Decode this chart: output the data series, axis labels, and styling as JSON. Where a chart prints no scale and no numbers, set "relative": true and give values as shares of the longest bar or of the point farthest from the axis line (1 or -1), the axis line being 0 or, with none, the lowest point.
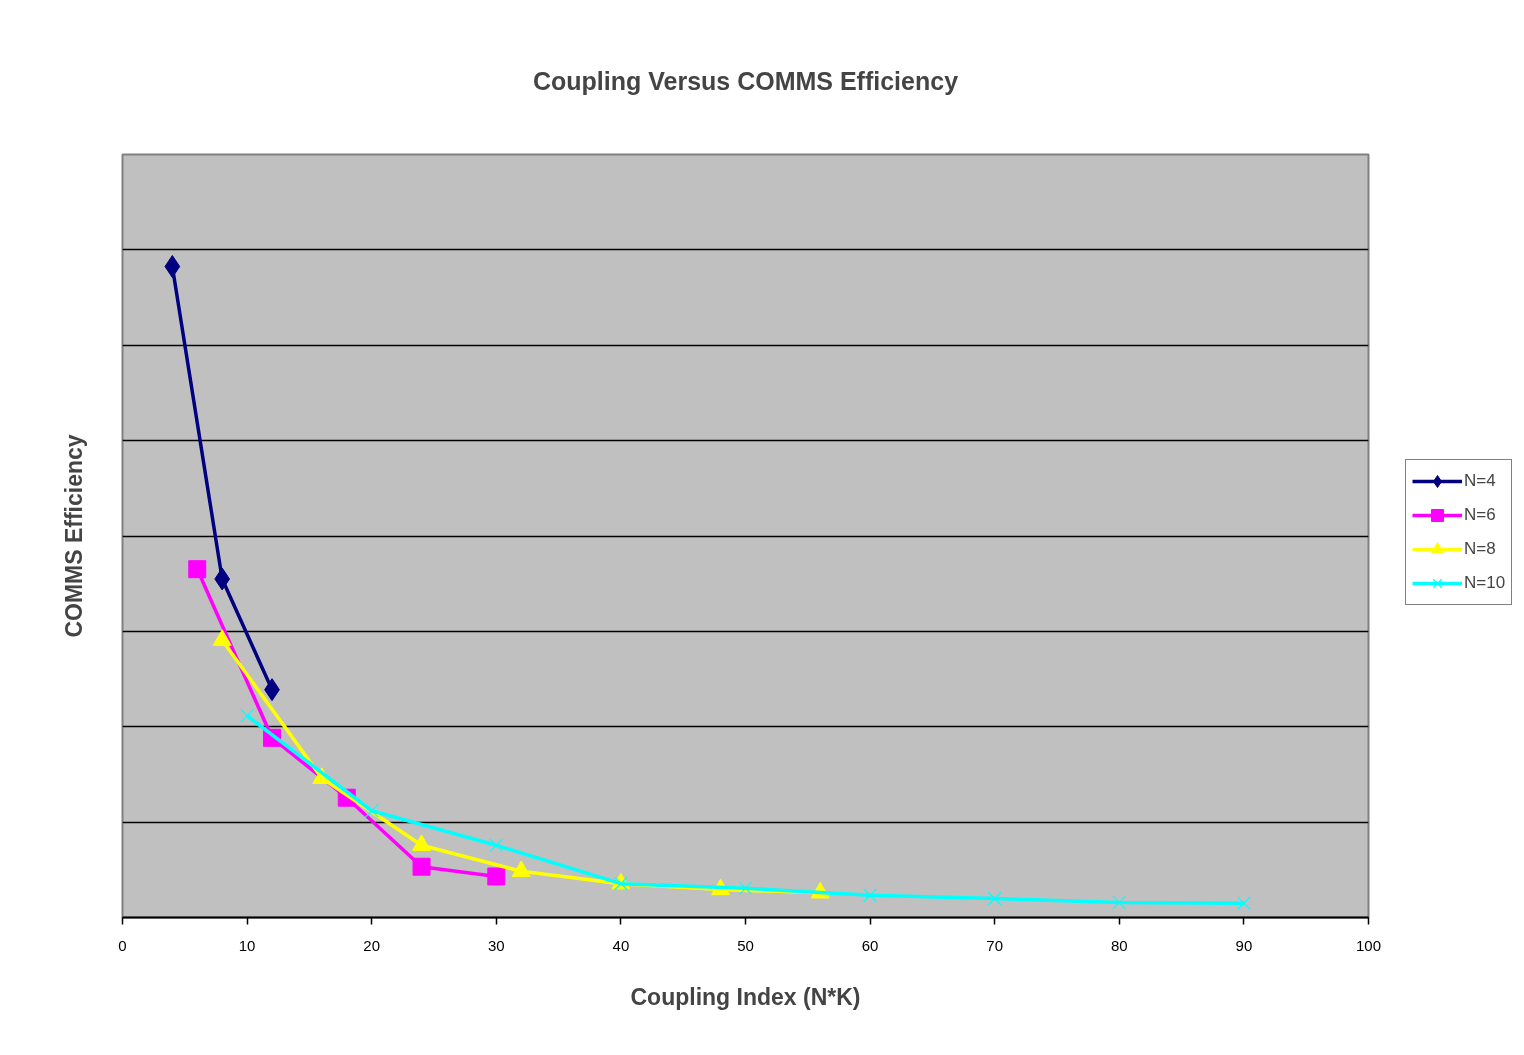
{
  "chart_data": {
    "type": "line",
    "title": "Coupling Versus COMMS Efficiency",
    "xlabel": "Coupling Index (N*K)",
    "ylabel": "COMMS Efficiency",
    "relative": true,
    "xlim": [
      0,
      100
    ],
    "xticks": [
      0,
      10,
      20,
      30,
      40,
      50,
      60,
      70,
      80,
      90,
      100
    ],
    "grid": "y",
    "legend": "right",
    "line_style": "solid",
    "series": [
      {
        "name": "N=4",
        "color": "#000080",
        "marker": "diamond",
        "x": [
          4,
          8,
          12
        ],
        "values": [
          1.0,
          0.52,
          0.35
        ]
      },
      {
        "name": "N=6",
        "color": "#ff00ff",
        "marker": "square",
        "x": [
          6,
          12,
          18,
          24,
          30
        ],
        "values": [
          0.535,
          0.276,
          0.184,
          0.078,
          0.063
        ]
      },
      {
        "name": "N=8",
        "color": "#ffff00",
        "marker": "triangle",
        "x": [
          8,
          16,
          24,
          32,
          40,
          48,
          56
        ],
        "values": [
          0.426,
          0.214,
          0.111,
          0.071,
          0.052,
          0.043,
          0.038
        ]
      },
      {
        "name": "N=10",
        "color": "#00ffff",
        "marker": "cross",
        "x": [
          10,
          20,
          30,
          40,
          50,
          60,
          70,
          80,
          90
        ],
        "values": [
          0.31,
          0.164,
          0.111,
          0.052,
          0.045,
          0.034,
          0.029,
          0.023,
          0.022
        ]
      }
    ]
  }
}
